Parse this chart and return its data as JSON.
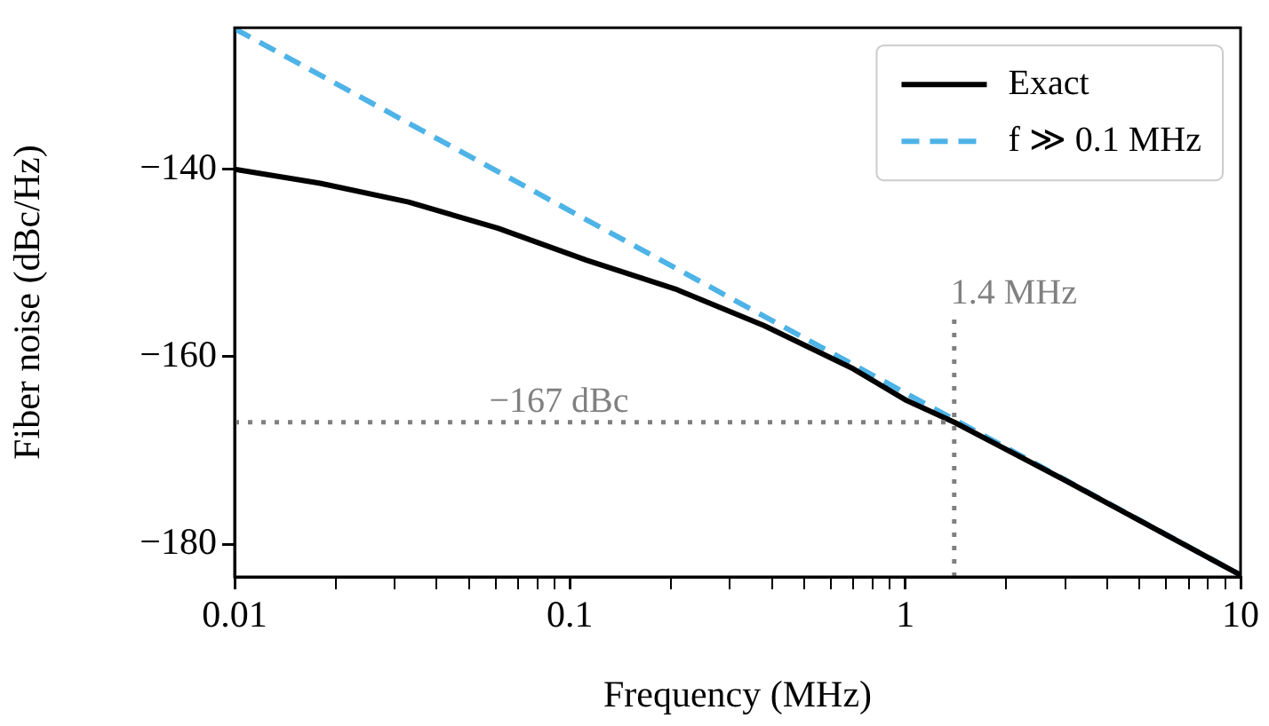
{
  "chart_data": {
    "type": "line",
    "xlabel": "Frequency (MHz)",
    "ylabel": "Fiber noise (dBc/Hz)",
    "log": "x",
    "grid": false,
    "legend": "top right",
    "marker": "none",
    "xlim": [
      0.01,
      10
    ],
    "ylim": [
      -183.5,
      -124.9
    ],
    "xticks": [
      {
        "value": 0.01,
        "label": "0.01"
      },
      {
        "value": 0.02,
        "label": null
      },
      {
        "value": 0.03,
        "label": null
      },
      {
        "value": 0.04,
        "label": null
      },
      {
        "value": 0.05,
        "label": null
      },
      {
        "value": 0.06,
        "label": null
      },
      {
        "value": 0.07,
        "label": null
      },
      {
        "value": 0.08,
        "label": null
      },
      {
        "value": 0.09,
        "label": null
      },
      {
        "value": 0.1,
        "label": "0.1"
      },
      {
        "value": 0.2,
        "label": null
      },
      {
        "value": 0.3,
        "label": null
      },
      {
        "value": 0.4,
        "label": null
      },
      {
        "value": 0.5,
        "label": null
      },
      {
        "value": 0.6,
        "label": null
      },
      {
        "value": 0.7,
        "label": null
      },
      {
        "value": 0.8,
        "label": null
      },
      {
        "value": 0.9,
        "label": null
      },
      {
        "value": 1,
        "label": "1"
      },
      {
        "value": 2,
        "label": null
      },
      {
        "value": 3,
        "label": null
      },
      {
        "value": 4,
        "label": null
      },
      {
        "value": 5,
        "label": null
      },
      {
        "value": 6,
        "label": null
      },
      {
        "value": 7,
        "label": null
      },
      {
        "value": 8,
        "label": null
      },
      {
        "value": 9,
        "label": null
      },
      {
        "value": 10,
        "label": "10"
      }
    ],
    "yticks": [
      {
        "value": -180,
        "label": "−180"
      },
      {
        "value": -160,
        "label": "−160"
      },
      {
        "value": -140,
        "label": "−140"
      }
    ],
    "series": [
      {
        "name": "Exact",
        "color": "#000000",
        "line_style": "solid",
        "x": [
          0.01,
          0.018,
          0.033,
          0.061,
          0.112,
          0.207,
          0.38,
          0.7,
          1,
          1.4,
          3,
          10
        ],
        "values": [
          -140,
          -141.5,
          -143.5,
          -146.3,
          -149.7,
          -152.8,
          -156.7,
          -161.3,
          -164.6,
          -167,
          -173.2,
          -183.3
        ]
      },
      {
        "name": "f ≫ 0.1 MHz",
        "color": "#4eb3e6",
        "line_style": "dashed",
        "x": [
          0.01,
          10
        ],
        "values": [
          -125,
          -183.3
        ]
      }
    ],
    "ref_lines": [
      {
        "axis": "y",
        "value": -167,
        "label": "−167 dBc",
        "color": "#808080",
        "line_style": "dotted"
      },
      {
        "axis": "x",
        "value": 1.4,
        "label": "1.4 MHz",
        "color": "#808080",
        "line_style": "dotted"
      }
    ]
  }
}
